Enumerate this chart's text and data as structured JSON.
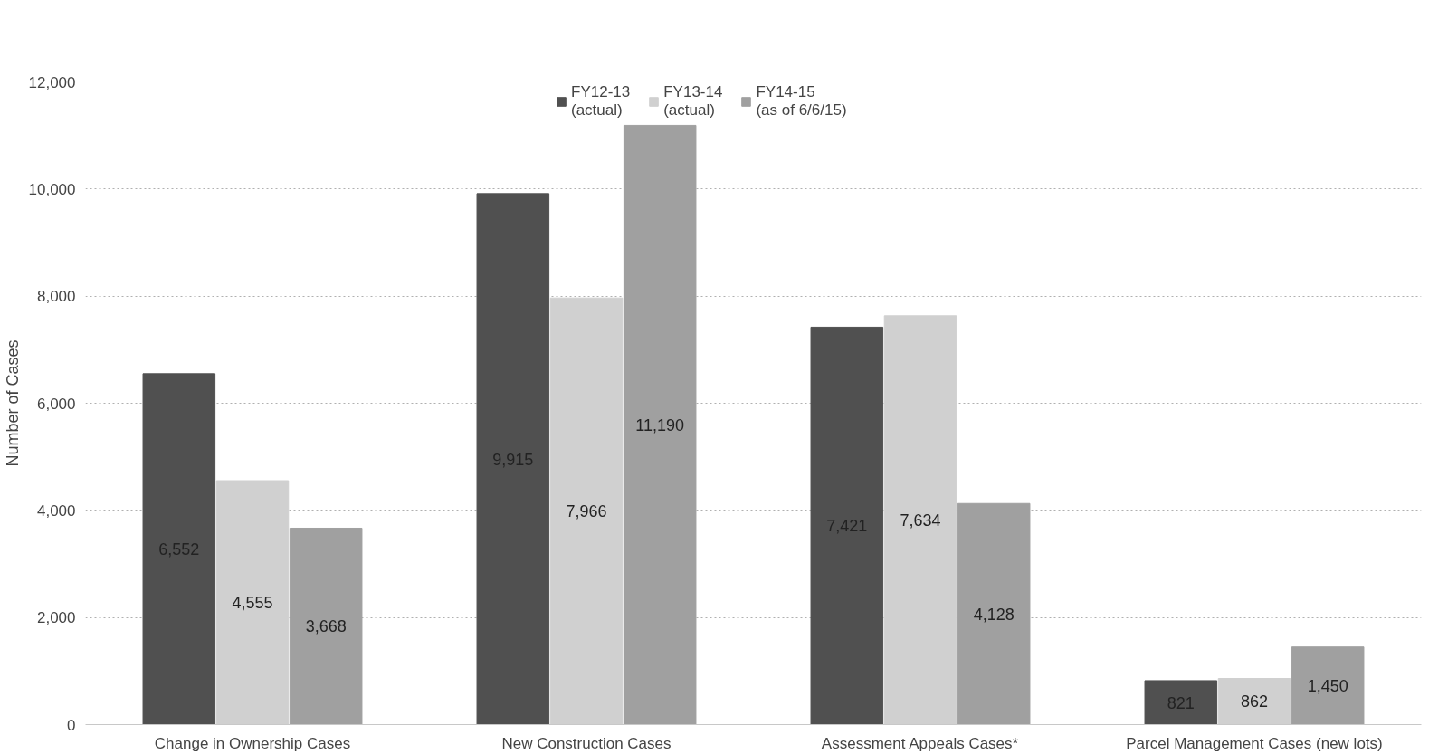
{
  "chart_data": {
    "type": "bar",
    "ylabel": "Number of Cases",
    "categories": [
      "Change in Ownership Cases",
      "New Construction Cases",
      "Assessment Appeals Cases*",
      "Parcel Management Cases (new lots)"
    ],
    "series": [
      {
        "name": "FY12-13\n(actual)",
        "color": "#505050",
        "values": [
          6552,
          9915,
          7421,
          821
        ]
      },
      {
        "name": "FY13-14\n(actual)",
        "color": "#d0d0d0",
        "values": [
          4555,
          7966,
          7634,
          862
        ]
      },
      {
        "name": "FY14-15\n(as of 6/6/15)",
        "color": "#a0a0a0",
        "values": [
          3668,
          11190,
          4128,
          1450
        ]
      }
    ],
    "ylim": [
      0,
      12000
    ],
    "yticks": [
      {
        "value": 0,
        "label": "0"
      },
      {
        "value": 2000,
        "label": "2,000"
      },
      {
        "value": 4000,
        "label": "4,000"
      },
      {
        "value": 6000,
        "label": "6,000"
      },
      {
        "value": 8000,
        "label": "8,000"
      },
      {
        "value": 10000,
        "label": "10,000"
      },
      {
        "value": 12000,
        "label": "12,000"
      }
    ],
    "value_labels": [
      [
        "6,552",
        "9,915",
        "7,421",
        "821"
      ],
      [
        "4,555",
        "7,966",
        "7,634",
        "862"
      ],
      [
        "3,668",
        "11,190",
        "4,128",
        "1,450"
      ]
    ],
    "grid": "y",
    "legend": "top"
  }
}
